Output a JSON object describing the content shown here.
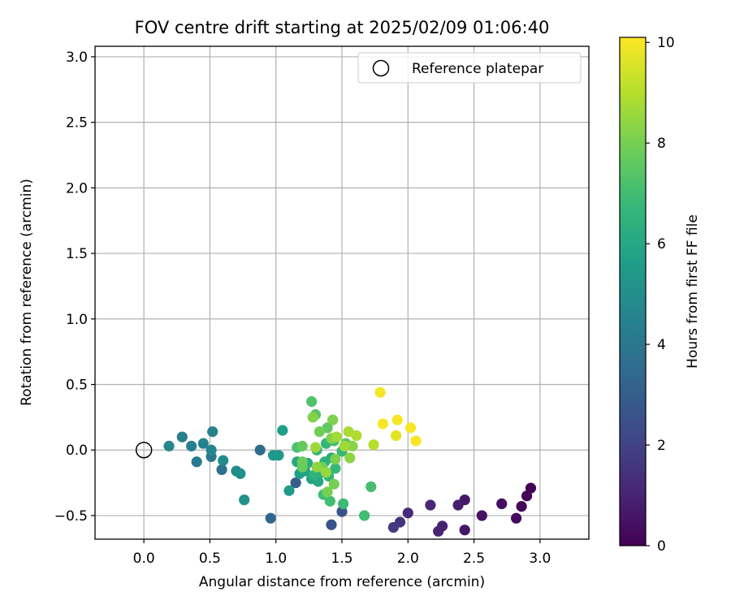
{
  "chart_data": {
    "type": "scatter",
    "title": "FOV centre drift starting at 2025/02/09 01:06:40",
    "xlabel": "Angular distance from reference (arcmin)",
    "ylabel": "Rotation from reference (arcmin)",
    "xlim": [
      -0.37,
      3.37
    ],
    "ylim": [
      -0.68,
      3.08
    ],
    "xticks": [
      0.0,
      0.5,
      1.0,
      1.5,
      2.0,
      2.5,
      3.0
    ],
    "xtick_labels": [
      "0.0",
      "0.5",
      "1.0",
      "1.5",
      "2.0",
      "2.5",
      "3.0"
    ],
    "yticks": [
      -0.5,
      0.0,
      0.5,
      1.0,
      1.5,
      2.0,
      2.5,
      3.0
    ],
    "ytick_labels": [
      "−0.5",
      "0.0",
      "0.5",
      "1.0",
      "1.5",
      "2.0",
      "2.5",
      "3.0"
    ],
    "grid": true,
    "legend": {
      "placement": "top-right",
      "entries": [
        {
          "label": "Reference platepar",
          "marker": "open-circle"
        }
      ]
    },
    "reference_point": {
      "x": 0.0,
      "y": 0.0
    },
    "colorbar": {
      "label": "Hours from first FF file",
      "colormap": "viridis",
      "range": [
        0,
        10.1
      ],
      "ticks": [
        0,
        2,
        4,
        6,
        8,
        10
      ],
      "tick_labels": [
        "0",
        "2",
        "4",
        "6",
        "8",
        "10"
      ]
    },
    "points": [
      {
        "x": 2.93,
        "y": -0.29,
        "h": 0.0
      },
      {
        "x": 2.9,
        "y": -0.35,
        "h": 0.1
      },
      {
        "x": 2.86,
        "y": -0.43,
        "h": 0.2
      },
      {
        "x": 2.82,
        "y": -0.52,
        "h": 0.3
      },
      {
        "x": 2.71,
        "y": -0.41,
        "h": 0.4
      },
      {
        "x": 2.56,
        "y": -0.5,
        "h": 0.5
      },
      {
        "x": 2.43,
        "y": -0.61,
        "h": 0.6
      },
      {
        "x": 2.43,
        "y": -0.38,
        "h": 0.7
      },
      {
        "x": 2.38,
        "y": -0.42,
        "h": 0.8
      },
      {
        "x": 2.26,
        "y": -0.58,
        "h": 0.9
      },
      {
        "x": 2.23,
        "y": -0.62,
        "h": 1.0
      },
      {
        "x": 2.17,
        "y": -0.42,
        "h": 1.1
      },
      {
        "x": 2.0,
        "y": -0.48,
        "h": 1.3
      },
      {
        "x": 1.94,
        "y": -0.55,
        "h": 1.5
      },
      {
        "x": 1.89,
        "y": -0.59,
        "h": 1.7
      },
      {
        "x": 1.42,
        "y": -0.57,
        "h": 2.5
      },
      {
        "x": 1.5,
        "y": -0.47,
        "h": 2.6
      },
      {
        "x": 1.15,
        "y": -0.25,
        "h": 3.0
      },
      {
        "x": 0.96,
        "y": -0.52,
        "h": 3.3
      },
      {
        "x": 0.88,
        "y": 0.0,
        "h": 3.5
      },
      {
        "x": 0.59,
        "y": -0.15,
        "h": 3.7
      },
      {
        "x": 0.51,
        "y": -0.05,
        "h": 4.0
      },
      {
        "x": 0.4,
        "y": -0.09,
        "h": 4.2
      },
      {
        "x": 0.29,
        "y": 0.1,
        "h": 4.3
      },
      {
        "x": 0.36,
        "y": 0.03,
        "h": 4.4
      },
      {
        "x": 0.45,
        "y": 0.05,
        "h": 4.5
      },
      {
        "x": 0.52,
        "y": 0.14,
        "h": 4.5
      },
      {
        "x": 0.51,
        "y": 0.0,
        "h": 4.6
      },
      {
        "x": 0.19,
        "y": 0.03,
        "h": 4.7
      },
      {
        "x": 0.6,
        "y": -0.08,
        "h": 4.8
      },
      {
        "x": 0.7,
        "y": -0.16,
        "h": 4.9
      },
      {
        "x": 0.73,
        "y": -0.18,
        "h": 5.0
      },
      {
        "x": 0.76,
        "y": -0.38,
        "h": 5.1
      },
      {
        "x": 0.98,
        "y": -0.04,
        "h": 5.3
      },
      {
        "x": 1.02,
        "y": -0.04,
        "h": 5.4
      },
      {
        "x": 1.1,
        "y": -0.31,
        "h": 5.5
      },
      {
        "x": 1.05,
        "y": 0.15,
        "h": 5.6
      },
      {
        "x": 1.18,
        "y": -0.18,
        "h": 5.7
      },
      {
        "x": 1.22,
        "y": -0.16,
        "h": 5.8
      },
      {
        "x": 1.27,
        "y": -0.22,
        "h": 5.9
      },
      {
        "x": 1.32,
        "y": -0.24,
        "h": 6.0
      },
      {
        "x": 1.16,
        "y": -0.09,
        "h": 6.1
      },
      {
        "x": 1.24,
        "y": -0.1,
        "h": 6.2
      },
      {
        "x": 1.35,
        "y": -0.17,
        "h": 6.3
      },
      {
        "x": 1.42,
        "y": -0.06,
        "h": 6.3
      },
      {
        "x": 1.37,
        "y": -0.09,
        "h": 6.4
      },
      {
        "x": 1.29,
        "y": -0.19,
        "h": 6.5
      },
      {
        "x": 1.31,
        "y": 0.0,
        "h": 6.6
      },
      {
        "x": 1.38,
        "y": 0.05,
        "h": 6.6
      },
      {
        "x": 1.4,
        "y": -0.2,
        "h": 6.7
      },
      {
        "x": 1.45,
        "y": -0.14,
        "h": 6.8
      },
      {
        "x": 1.5,
        "y": -0.01,
        "h": 6.8
      },
      {
        "x": 1.51,
        "y": -0.41,
        "h": 6.9
      },
      {
        "x": 1.41,
        "y": -0.39,
        "h": 7.0
      },
      {
        "x": 1.36,
        "y": -0.34,
        "h": 7.0
      },
      {
        "x": 1.67,
        "y": -0.5,
        "h": 7.0
      },
      {
        "x": 1.72,
        "y": -0.28,
        "h": 7.1
      },
      {
        "x": 1.44,
        "y": 0.07,
        "h": 7.1
      },
      {
        "x": 1.16,
        "y": 0.02,
        "h": 7.2
      },
      {
        "x": 1.27,
        "y": 0.37,
        "h": 7.3
      },
      {
        "x": 1.3,
        "y": 0.27,
        "h": 7.4
      },
      {
        "x": 1.53,
        "y": 0.05,
        "h": 7.5
      },
      {
        "x": 1.39,
        "y": 0.17,
        "h": 7.6
      },
      {
        "x": 1.2,
        "y": 0.03,
        "h": 7.7
      },
      {
        "x": 1.2,
        "y": -0.09,
        "h": 7.8
      },
      {
        "x": 1.2,
        "y": -0.13,
        "h": 7.8
      },
      {
        "x": 1.33,
        "y": 0.14,
        "h": 7.9
      },
      {
        "x": 1.35,
        "y": -0.13,
        "h": 7.9
      },
      {
        "x": 1.39,
        "y": -0.32,
        "h": 8.0
      },
      {
        "x": 1.44,
        "y": -0.26,
        "h": 8.0
      },
      {
        "x": 1.43,
        "y": 0.23,
        "h": 8.1
      },
      {
        "x": 1.45,
        "y": -0.07,
        "h": 8.1
      },
      {
        "x": 1.28,
        "y": 0.25,
        "h": 8.2
      },
      {
        "x": 1.42,
        "y": 0.09,
        "h": 8.2
      },
      {
        "x": 1.58,
        "y": 0.03,
        "h": 8.3
      },
      {
        "x": 1.56,
        "y": -0.06,
        "h": 8.4
      },
      {
        "x": 1.31,
        "y": -0.13,
        "h": 8.4
      },
      {
        "x": 1.38,
        "y": -0.17,
        "h": 8.5
      },
      {
        "x": 1.3,
        "y": 0.02,
        "h": 8.6
      },
      {
        "x": 1.46,
        "y": 0.1,
        "h": 8.7
      },
      {
        "x": 1.52,
        "y": 0.03,
        "h": 8.7
      },
      {
        "x": 1.55,
        "y": 0.14,
        "h": 8.8
      },
      {
        "x": 1.61,
        "y": 0.11,
        "h": 8.9
      },
      {
        "x": 1.74,
        "y": 0.04,
        "h": 9.0
      },
      {
        "x": 1.91,
        "y": 0.11,
        "h": 9.7
      },
      {
        "x": 1.79,
        "y": 0.44,
        "h": 10.0
      },
      {
        "x": 1.81,
        "y": 0.2,
        "h": 10.0
      },
      {
        "x": 1.92,
        "y": 0.23,
        "h": 10.0
      },
      {
        "x": 2.02,
        "y": 0.17,
        "h": 10.0
      },
      {
        "x": 2.06,
        "y": 0.07,
        "h": 10.0
      }
    ]
  }
}
